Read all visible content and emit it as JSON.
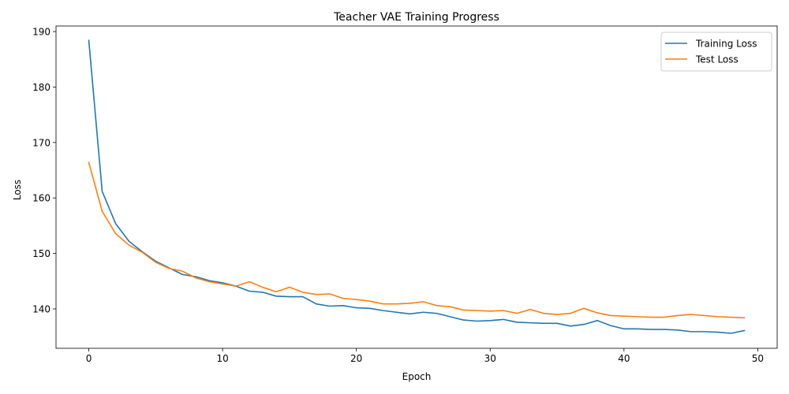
{
  "chart_data": {
    "type": "line",
    "title": "Teacher VAE Training Progress",
    "xlabel": "Epoch",
    "ylabel": "Loss",
    "xlim": [
      -2.45,
      51.45
    ],
    "ylim": [
      132.9,
      191.0
    ],
    "xticks": [
      0,
      10,
      20,
      30,
      40,
      50
    ],
    "yticks": [
      140,
      150,
      160,
      170,
      180,
      190
    ],
    "grid": false,
    "legend_position": "top-right",
    "x": [
      0,
      1,
      2,
      3,
      4,
      5,
      6,
      7,
      8,
      9,
      10,
      11,
      12,
      13,
      14,
      15,
      16,
      17,
      18,
      19,
      20,
      21,
      22,
      23,
      24,
      25,
      26,
      27,
      28,
      29,
      30,
      31,
      32,
      33,
      34,
      35,
      36,
      37,
      38,
      39,
      40,
      41,
      42,
      43,
      44,
      45,
      46,
      47,
      48,
      49
    ],
    "series": [
      {
        "name": "Training Loss",
        "color": "#1f77b4",
        "values": [
          188.4,
          161.2,
          155.4,
          152.2,
          150.3,
          148.6,
          147.4,
          146.2,
          145.8,
          145.1,
          144.7,
          144.1,
          143.2,
          143.0,
          142.3,
          142.2,
          142.2,
          140.9,
          140.5,
          140.6,
          140.2,
          140.1,
          139.7,
          139.4,
          139.1,
          139.4,
          139.2,
          138.6,
          138.0,
          137.8,
          137.9,
          138.1,
          137.6,
          137.5,
          137.4,
          137.4,
          136.9,
          137.2,
          137.9,
          137.0,
          136.4,
          136.4,
          136.3,
          136.3,
          136.2,
          135.9,
          135.9,
          135.8,
          135.6,
          136.1
        ]
      },
      {
        "name": "Test Loss",
        "color": "#ff7f0e",
        "values": [
          166.4,
          157.6,
          153.6,
          151.5,
          150.2,
          148.4,
          147.3,
          146.8,
          145.6,
          144.9,
          144.5,
          144.1,
          144.9,
          143.9,
          143.1,
          143.9,
          143.0,
          142.6,
          142.7,
          141.9,
          141.7,
          141.4,
          140.9,
          140.9,
          141.0,
          141.3,
          140.6,
          140.4,
          139.8,
          139.7,
          139.6,
          139.7,
          139.2,
          139.9,
          139.2,
          139.0,
          139.2,
          140.1,
          139.3,
          138.8,
          138.7,
          138.6,
          138.5,
          138.5,
          138.8,
          139.0,
          138.8,
          138.6,
          138.5,
          138.4
        ]
      }
    ]
  }
}
